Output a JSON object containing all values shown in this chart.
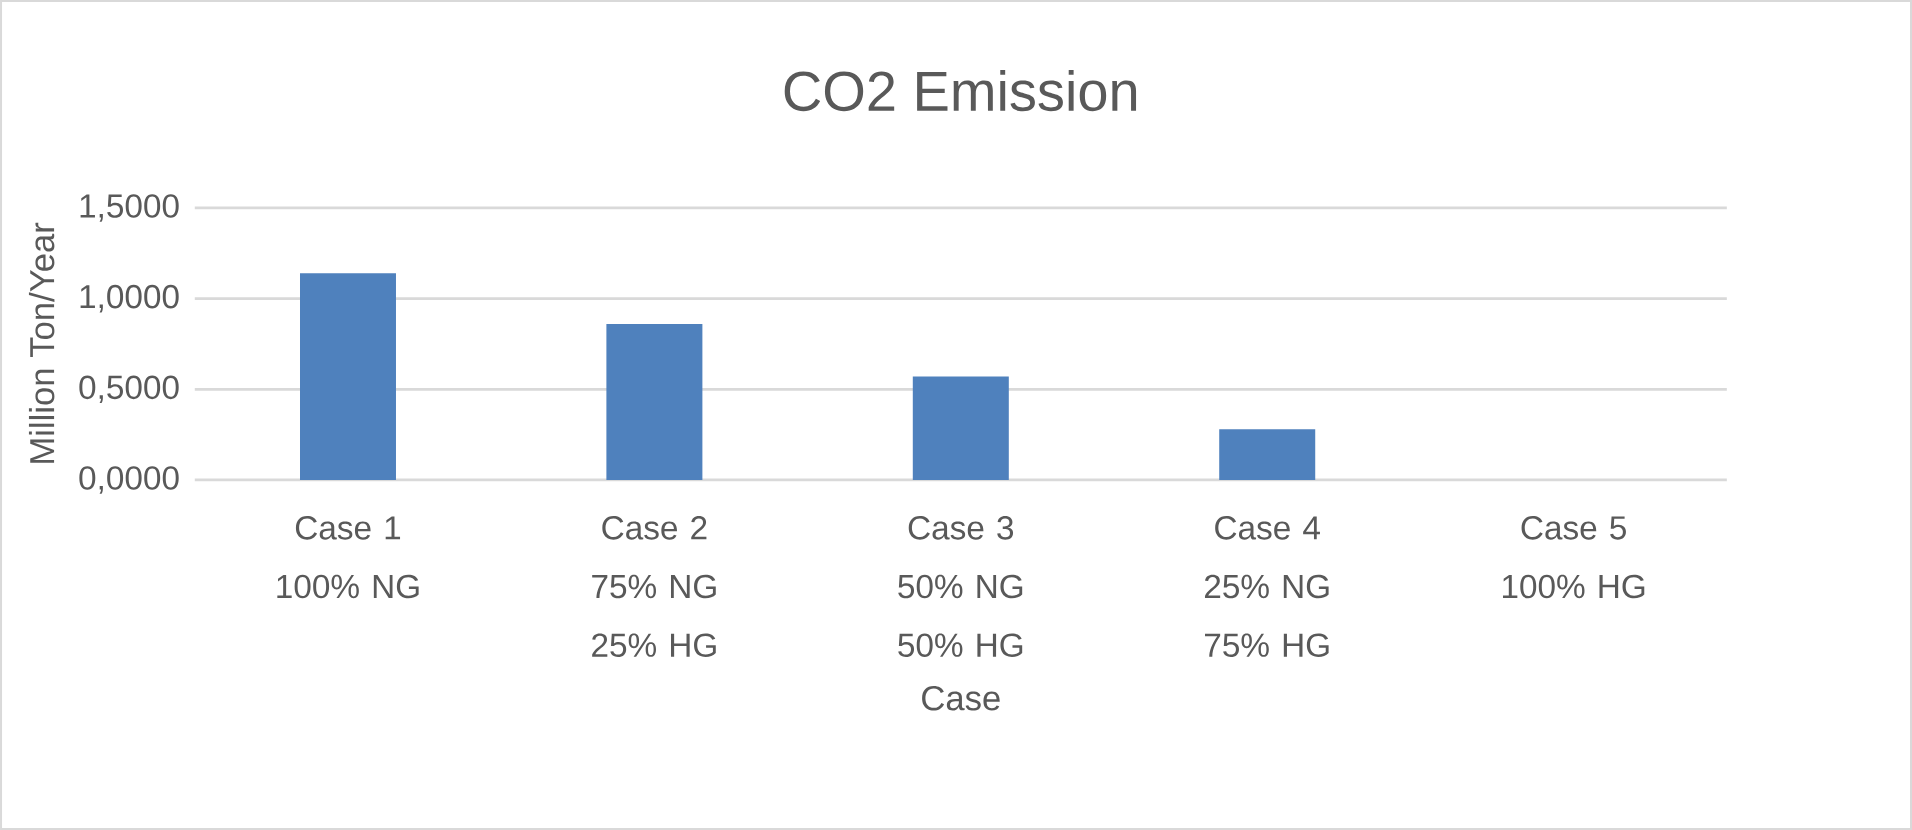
{
  "chart_data": {
    "type": "bar",
    "title": "CO2 Emission",
    "xlabel": "Case",
    "ylabel": "Million Ton/Year",
    "categories": [
      "Case 1 100% NG",
      "Case 2 75% NG 25% HG",
      "Case 3 50% NG 50% HG",
      "Case 4 25% NG 75% HG",
      "Case 5 100% HG"
    ],
    "values": [
      1.14,
      0.86,
      0.57,
      0.28,
      0
    ],
    "color": "#4f81bd",
    "ylim": [
      0,
      1.5
    ],
    "yticks": [
      {
        "value": 0,
        "label": "0,0000"
      },
      {
        "value": 0.5,
        "label": "0,5000"
      },
      {
        "value": 1,
        "label": "1,0000"
      },
      {
        "value": 1.5,
        "label": "1,5000"
      }
    ],
    "grid": "y"
  }
}
